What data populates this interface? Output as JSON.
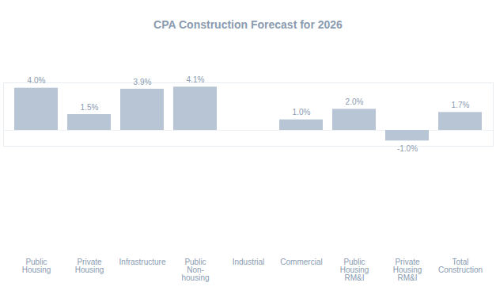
{
  "chart_data": {
    "type": "bar",
    "title": "CPA Construction Forecast for 2026",
    "categories": [
      "Public Housing",
      "Private Housing",
      "Infrastructure",
      "Public Non-housing",
      "Industrial",
      "Commercial",
      "Public Housing RM&I",
      "Private Housing RM&I",
      "Total Construction"
    ],
    "values": [
      4.0,
      1.5,
      3.9,
      4.1,
      null,
      1.0,
      2.0,
      -1.0,
      1.7
    ],
    "value_labels": [
      "4.0%",
      "1.5%",
      "3.9%",
      "4.1%",
      null,
      "1.0%",
      "2.0%",
      "-1.0%",
      "1.7%"
    ],
    "color": "#b7c5d4",
    "ylim": [
      -1.5,
      4.5
    ],
    "yticks": [],
    "grid": false,
    "data_labels": true,
    "tick_labels": "x"
  }
}
